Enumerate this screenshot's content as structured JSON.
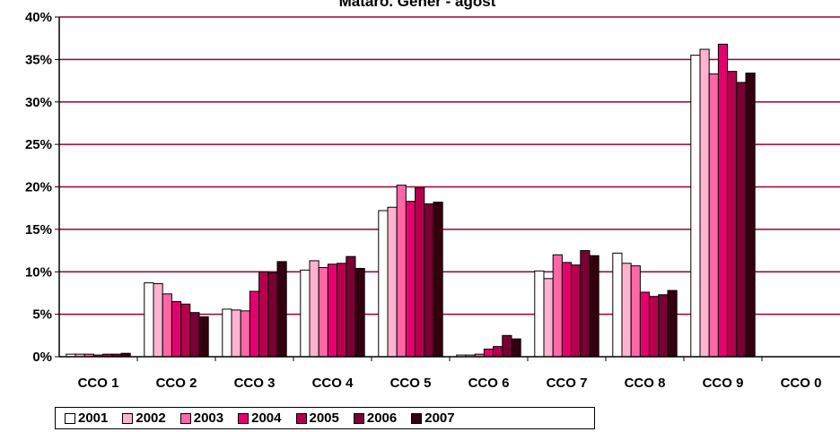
{
  "chart_data": {
    "type": "bar",
    "title": "Mataró. Gener - agost",
    "xlabel": "",
    "ylabel": "",
    "ylim": [
      0,
      40
    ],
    "y_ticks": [
      "0%",
      "5%",
      "10%",
      "15%",
      "20%",
      "25%",
      "30%",
      "35%",
      "40%"
    ],
    "grid": true,
    "legend_position": "bottom",
    "categories": [
      "CCO 1",
      "CCO 2",
      "CCO 3",
      "CCO 4",
      "CCO 5",
      "CCO 6",
      "CCO 7",
      "CCO 8",
      "CCO 9",
      "CCO 0"
    ],
    "series": [
      {
        "name": "2001",
        "color": "#ffffff",
        "values": [
          0.3,
          8.7,
          5.6,
          10.2,
          17.2,
          0.2,
          10.1,
          12.2,
          35.5,
          0.0
        ]
      },
      {
        "name": "2002",
        "color": "#ffb3d1",
        "values": [
          0.3,
          8.6,
          5.5,
          11.3,
          17.6,
          0.2,
          9.2,
          11.0,
          36.2,
          0.0
        ]
      },
      {
        "name": "2003",
        "color": "#ff66a6",
        "values": [
          0.3,
          7.4,
          5.4,
          10.5,
          20.2,
          0.3,
          12.0,
          10.7,
          33.3,
          0.0
        ]
      },
      {
        "name": "2004",
        "color": "#e6006e",
        "values": [
          0.2,
          6.5,
          7.7,
          10.9,
          18.3,
          0.9,
          11.1,
          7.6,
          36.8,
          0.0
        ]
      },
      {
        "name": "2005",
        "color": "#b5004d",
        "values": [
          0.3,
          6.2,
          10.0,
          11.0,
          19.9,
          1.2,
          10.8,
          7.1,
          33.6,
          0.0
        ]
      },
      {
        "name": "2006",
        "color": "#7a0033",
        "values": [
          0.3,
          5.2,
          9.9,
          11.8,
          18.0,
          2.5,
          12.5,
          7.3,
          32.3,
          0.0
        ]
      },
      {
        "name": "2007",
        "color": "#33000f",
        "values": [
          0.4,
          4.7,
          11.2,
          10.4,
          18.2,
          2.1,
          11.9,
          7.8,
          33.4,
          0.0
        ]
      }
    ],
    "colors": {
      "axis": "#000000",
      "gridline": "#990033"
    }
  }
}
